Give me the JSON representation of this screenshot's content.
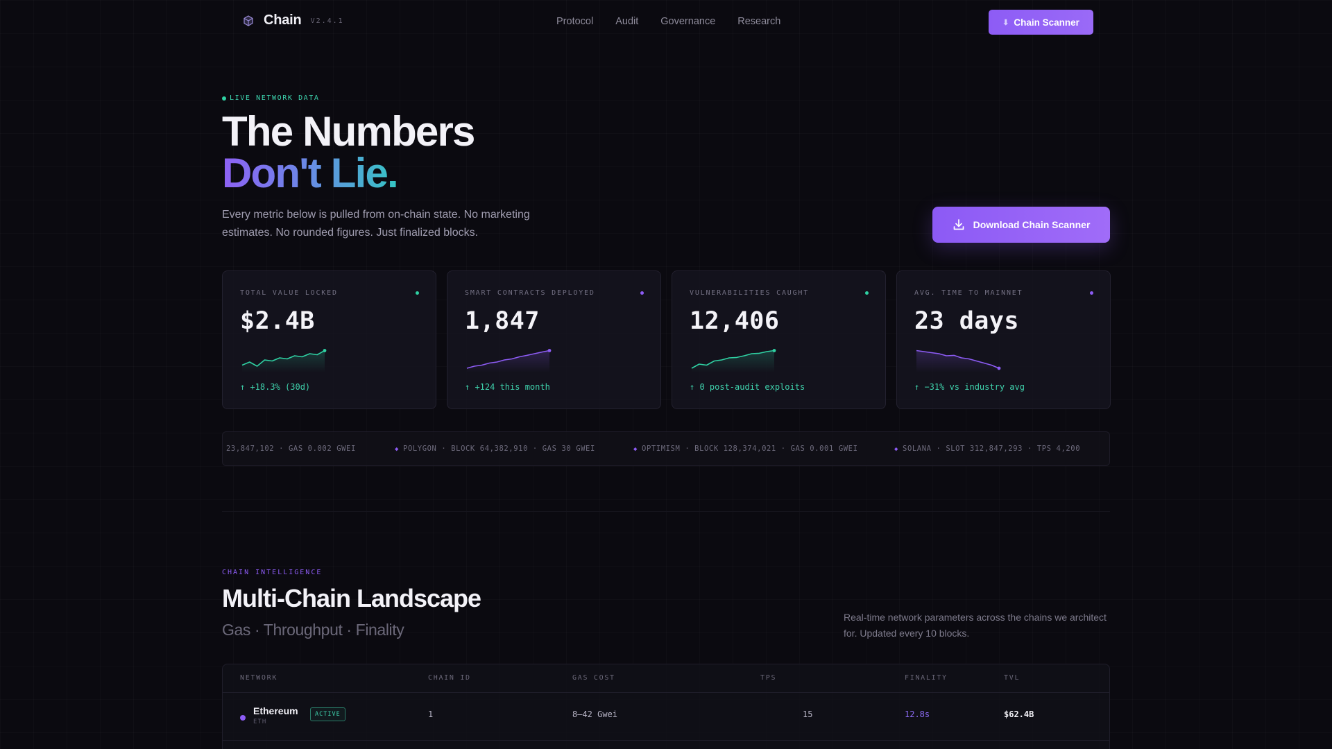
{
  "nav": {
    "brand": "Chain",
    "version": "V2.4.1",
    "links": [
      "Protocol",
      "Audit",
      "Governance",
      "Research"
    ],
    "cta_arrow": "⬇",
    "cta_label": "Chain Scanner"
  },
  "hero": {
    "eyebrow": "LIVE NETWORK DATA",
    "title_line1": "The Numbers",
    "title_line2": "Don't Lie.",
    "subtitle": "Every metric below is pulled from on-chain state. No marketing estimates. No rounded figures. Just finalized blocks.",
    "download_label": "Download Chain Scanner"
  },
  "stats": [
    {
      "label": "TOTAL VALUE LOCKED",
      "value": "$2.4B",
      "delta": "↑ +18.3% (30d)",
      "dot_color": "#2fd1a3",
      "spark_color": "#2fd1a3",
      "trend": [
        0.25,
        0.4,
        0.2,
        0.5,
        0.45,
        0.6,
        0.55,
        0.7,
        0.65,
        0.8,
        0.75,
        0.95
      ]
    },
    {
      "label": "SMART CONTRACTS DEPLOYED",
      "value": "1,847",
      "delta": "↑ +124 this month",
      "dot_color": "#8d5cf5",
      "spark_color": "#8d5cf5",
      "trend": [
        0.1,
        0.2,
        0.25,
        0.35,
        0.4,
        0.5,
        0.55,
        0.65,
        0.72,
        0.8,
        0.88,
        0.95
      ]
    },
    {
      "label": "VULNERABILITIES CAUGHT",
      "value": "12,406",
      "delta": "↑ 0 post-audit exploits",
      "dot_color": "#2fd1a3",
      "spark_color": "#2fd1a3",
      "trend": [
        0.1,
        0.3,
        0.25,
        0.45,
        0.5,
        0.6,
        0.62,
        0.7,
        0.8,
        0.82,
        0.9,
        0.95
      ]
    },
    {
      "label": "AVG. TIME TO MAINNET",
      "value": "23 days",
      "delta": "↑ −31% vs industry avg",
      "dot_color": "#8d5cf5",
      "spark_color": "#8d5cf5",
      "trend": [
        0.95,
        0.9,
        0.85,
        0.8,
        0.7,
        0.72,
        0.6,
        0.55,
        0.45,
        0.35,
        0.25,
        0.1
      ]
    }
  ],
  "ticker": [
    {
      "text": "23,847,102 · GAS 0.002 GWEI",
      "gem": false
    },
    {
      "text": "POLYGON · BLOCK 64,382,910 · GAS 30 GWEI",
      "gem": true
    },
    {
      "text": "OPTIMISM · BLOCK 128,374,021 · GAS 0.001 GWEI",
      "gem": true
    },
    {
      "text": "SOLANA · SLOT 312,847,293 · TPS 4,200",
      "gem": true
    }
  ],
  "section": {
    "eyebrow": "CHAIN INTELLIGENCE",
    "title": "Multi-Chain Landscape",
    "subtitle": "Gas · Throughput · Finality",
    "description": "Real-time network parameters across the chains we architect for. Updated every 10 blocks."
  },
  "table": {
    "headers": [
      "NETWORK",
      "CHAIN ID",
      "GAS COST",
      "TPS",
      "FINALITY",
      "TVL"
    ],
    "rows": [
      {
        "network": "Ethereum",
        "symbol": "ETH",
        "status": "ACTIVE",
        "chain_id": "1",
        "gas_cost": "8–42 Gwei",
        "tps": "15",
        "finality": "12.8s",
        "tvl": "$62.4B",
        "dot_color": "#8d5cf5"
      }
    ]
  },
  "colors": {
    "accent": "#8d5cf5",
    "success": "#2fd1a3",
    "background": "#0b0a10"
  }
}
